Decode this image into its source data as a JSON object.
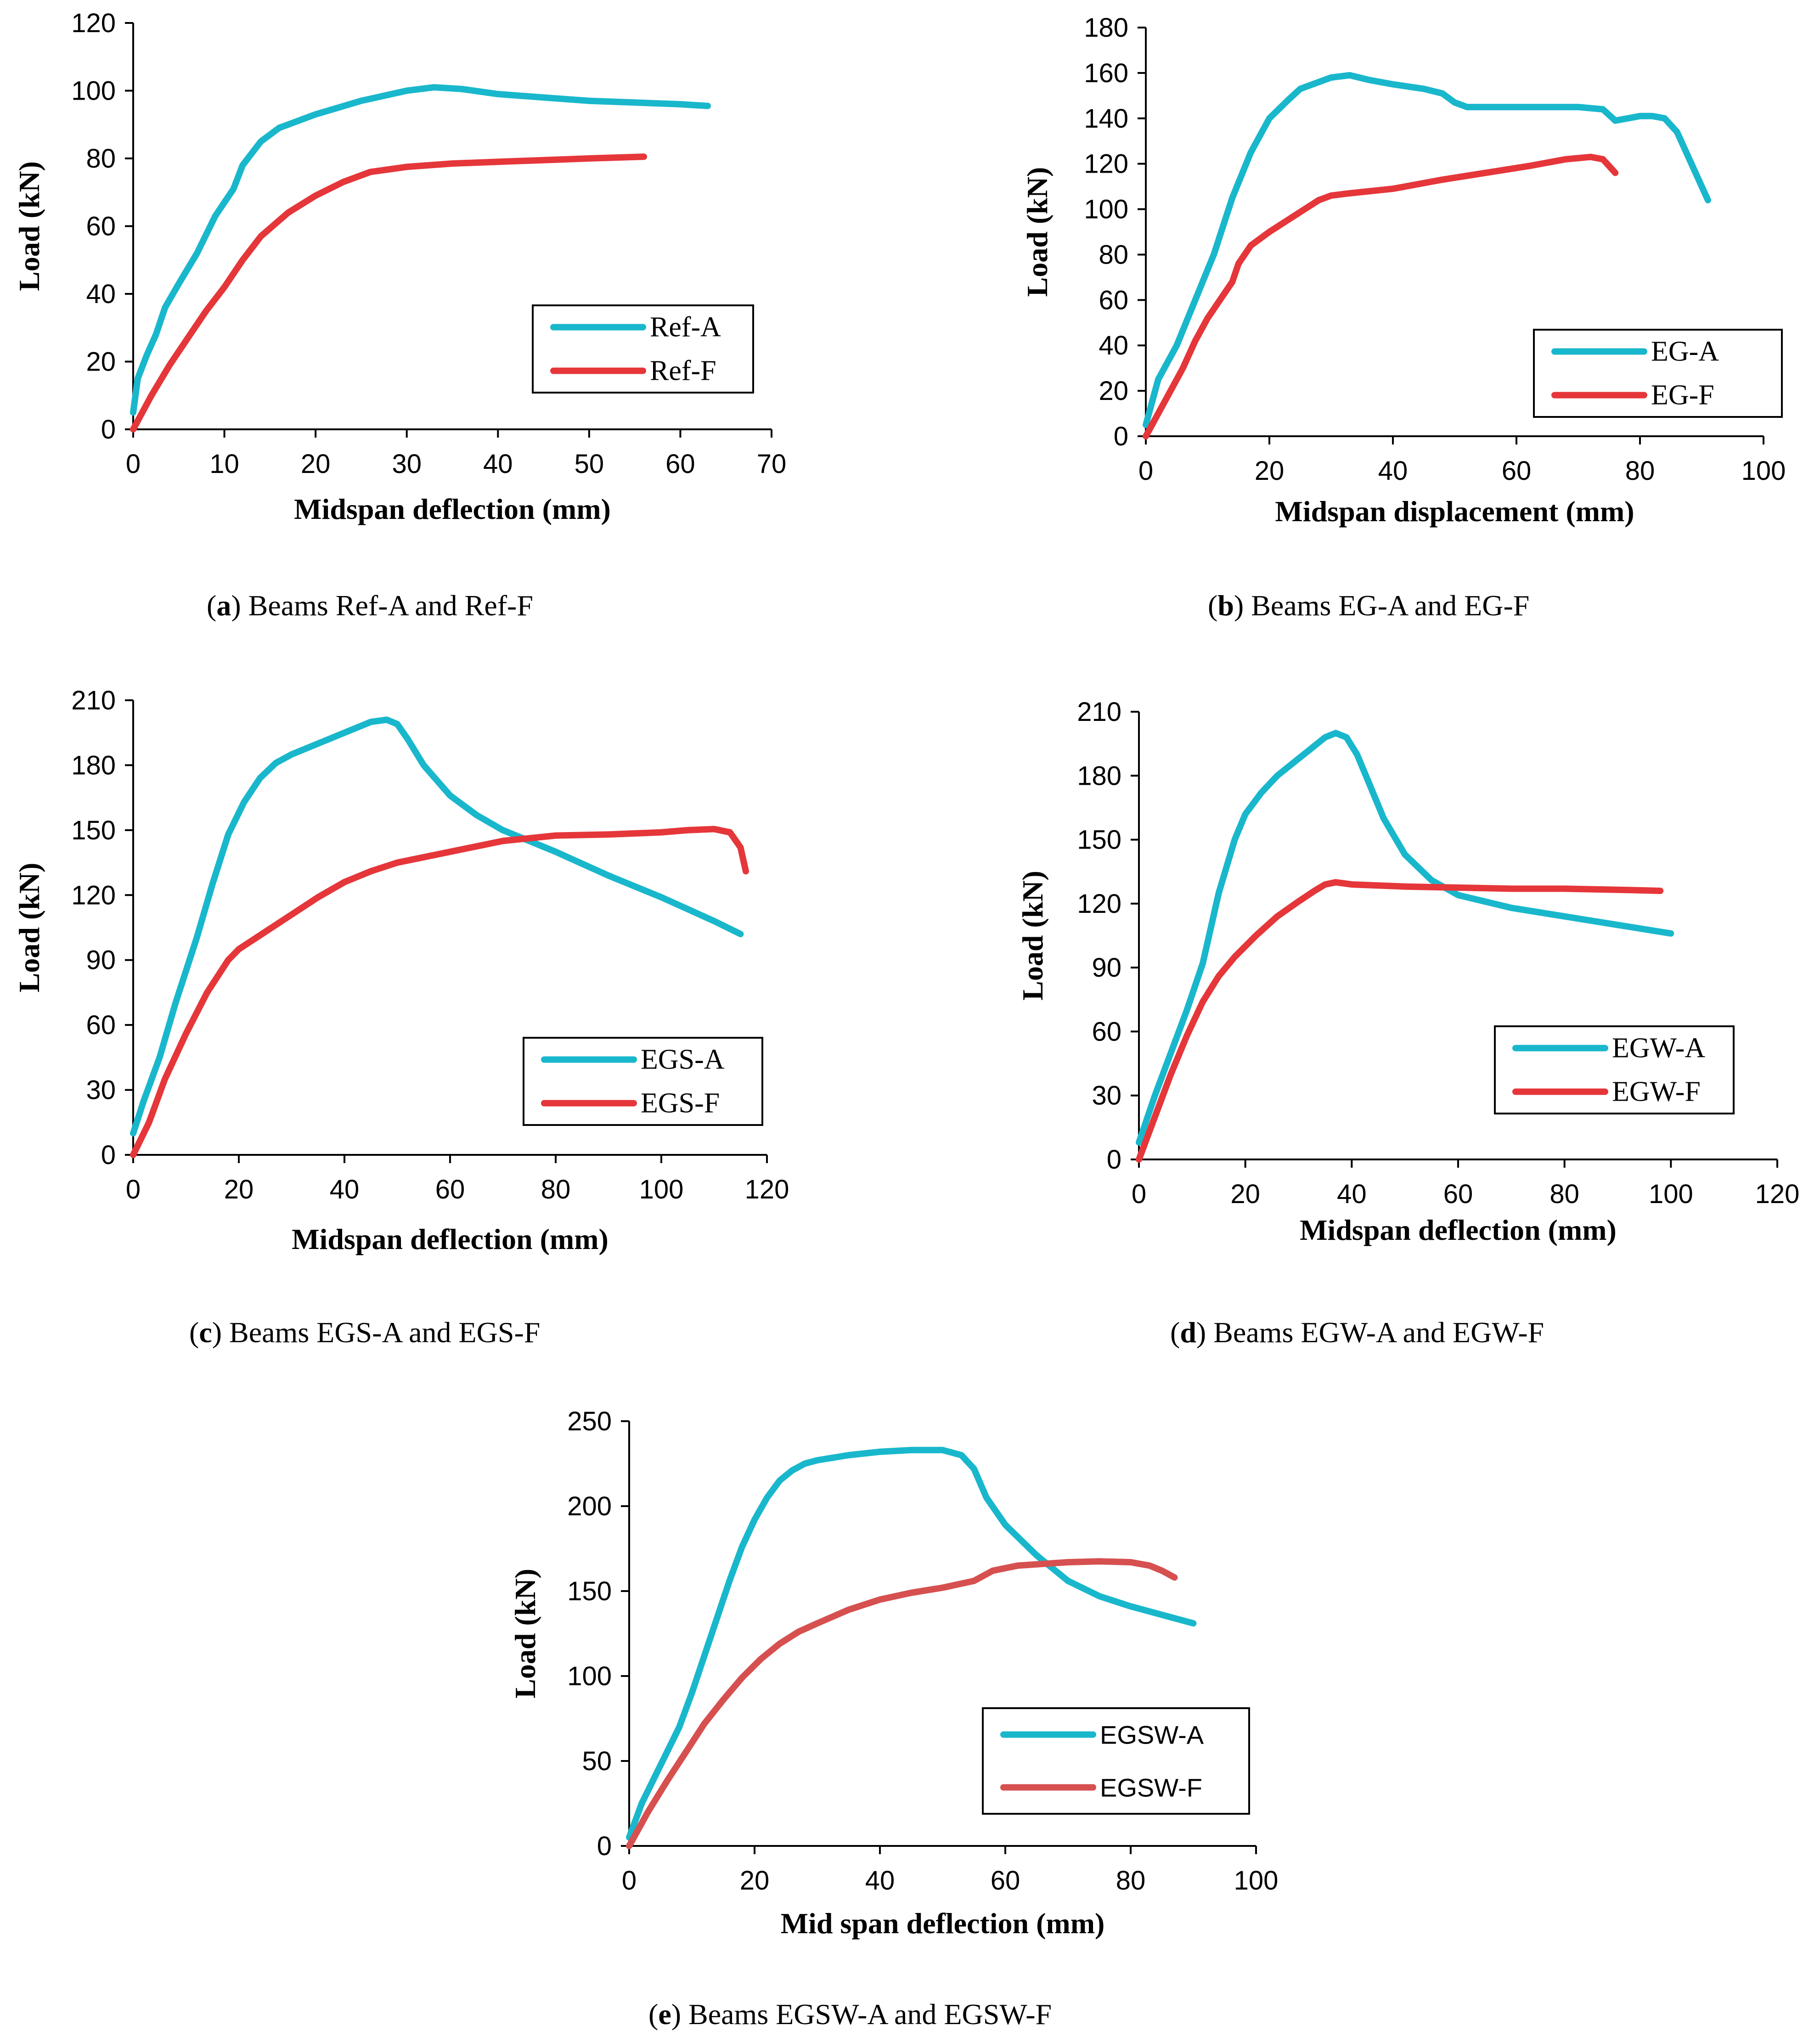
{
  "colors": {
    "cyan": "#19b7cc",
    "red": "#e5363a",
    "red_soft": "#d65050",
    "axis": "#000000"
  },
  "chart_data": [
    {
      "type": "line",
      "panel": "a",
      "caption": {
        "letter": "a",
        "text": "Beams Ref-A and Ref-F"
      },
      "xlabel": "Midspan deflection (mm)",
      "ylabel": "Load (kN)",
      "xlim": [
        0,
        70
      ],
      "ylim": [
        0,
        120
      ],
      "xticks": [
        0,
        10,
        20,
        30,
        40,
        50,
        60,
        70
      ],
      "yticks": [
        0,
        20,
        40,
        60,
        80,
        100,
        120
      ],
      "legend_position": "center-right",
      "series": [
        {
          "name": "Ref-A",
          "color": "cyan",
          "x": [
            0,
            0.5,
            1.5,
            2.5,
            3.5,
            5,
            7,
            9,
            11,
            12,
            14,
            16,
            20,
            25,
            30,
            33,
            36,
            40,
            45,
            50,
            55,
            60,
            63
          ],
          "y": [
            5,
            15,
            22,
            28,
            36,
            43,
            52,
            63,
            71,
            78,
            85,
            89,
            93,
            97,
            100,
            101,
            100.5,
            99,
            98,
            97,
            96.5,
            96,
            95.5
          ]
        },
        {
          "name": "Ref-F",
          "color": "red",
          "x": [
            0,
            2,
            4,
            6,
            8,
            10,
            12,
            14,
            17,
            20,
            23,
            26,
            30,
            35,
            40,
            45,
            50,
            56
          ],
          "y": [
            0,
            10,
            19,
            27,
            35,
            42,
            50,
            57,
            64,
            69,
            73,
            76,
            77.5,
            78.5,
            79,
            79.5,
            80,
            80.5
          ]
        }
      ]
    },
    {
      "type": "line",
      "panel": "b",
      "caption": {
        "letter": "b",
        "text": "Beams EG-A and EG-F"
      },
      "xlabel": "Midspan displacement (mm)",
      "ylabel": "Load (kN)",
      "xlim": [
        0,
        100
      ],
      "ylim": [
        0,
        180
      ],
      "xticks": [
        0,
        20,
        40,
        60,
        80,
        100
      ],
      "yticks": [
        0,
        20,
        40,
        60,
        80,
        100,
        120,
        140,
        160,
        180
      ],
      "legend_position": "bottom-right",
      "series": [
        {
          "name": "EG-A",
          "color": "cyan",
          "x": [
            0,
            2,
            5,
            8,
            11,
            14,
            17,
            20,
            23,
            25,
            27,
            30,
            33,
            36,
            40,
            45,
            48,
            50,
            52,
            55,
            60,
            65,
            70,
            74,
            76,
            78,
            80,
            82,
            84,
            86,
            88,
            90,
            91
          ],
          "y": [
            5,
            25,
            40,
            60,
            80,
            105,
            125,
            140,
            148,
            153,
            155,
            158,
            159,
            157,
            155,
            153,
            151,
            147,
            145,
            145,
            145,
            145,
            145,
            144,
            139,
            140,
            141,
            141,
            140,
            134,
            122,
            110,
            104
          ]
        },
        {
          "name": "EG-F",
          "color": "red",
          "x": [
            0,
            3,
            6,
            8,
            10,
            12,
            14,
            15,
            17,
            20,
            24,
            28,
            30,
            33,
            40,
            48,
            55,
            62,
            68,
            72,
            74,
            75,
            76
          ],
          "y": [
            0,
            15,
            30,
            42,
            52,
            60,
            68,
            76,
            84,
            90,
            97,
            104,
            106,
            107,
            109,
            113,
            116,
            119,
            122,
            123,
            122,
            119,
            116
          ]
        }
      ]
    },
    {
      "type": "line",
      "panel": "c",
      "caption": {
        "letter": "c",
        "text": "Beams EGS-A and EGS-F"
      },
      "xlabel": "Midspan deflection (mm)",
      "ylabel": "Load (kN)",
      "xlim": [
        0,
        120
      ],
      "ylim": [
        0,
        210
      ],
      "xticks": [
        0,
        20,
        40,
        60,
        80,
        100,
        120
      ],
      "yticks": [
        0,
        30,
        60,
        90,
        120,
        150,
        180,
        210
      ],
      "legend_position": "bottom-right",
      "series": [
        {
          "name": "EGS-A",
          "color": "cyan",
          "x": [
            0,
            2,
            5,
            8,
            12,
            15,
            18,
            21,
            24,
            27,
            30,
            35,
            40,
            45,
            48,
            50,
            52,
            55,
            60,
            65,
            70,
            75,
            80,
            90,
            100,
            110,
            115
          ],
          "y": [
            10,
            25,
            45,
            70,
            100,
            125,
            148,
            163,
            174,
            181,
            185,
            190,
            195,
            200,
            201,
            199,
            192,
            180,
            166,
            157,
            150,
            145,
            140,
            129,
            119,
            108,
            102
          ]
        },
        {
          "name": "EGS-F",
          "color": "red",
          "x": [
            0,
            3,
            6,
            10,
            14,
            18,
            20,
            25,
            30,
            35,
            40,
            45,
            50,
            60,
            70,
            80,
            90,
            100,
            105,
            110,
            113,
            115,
            116
          ],
          "y": [
            0,
            15,
            35,
            56,
            75,
            90,
            95,
            103,
            111,
            119,
            126,
            131,
            135,
            140,
            145,
            147.5,
            148,
            149,
            150,
            150.5,
            149,
            142,
            131
          ]
        }
      ]
    },
    {
      "type": "line",
      "panel": "d",
      "caption": {
        "letter": "d",
        "text": "Beams EGW-A and EGW-F"
      },
      "xlabel": "Midspan deflection (mm)",
      "ylabel": "Load (kN)",
      "xlim": [
        0,
        120
      ],
      "ylim": [
        0,
        210
      ],
      "xticks": [
        0,
        20,
        40,
        60,
        80,
        100,
        120
      ],
      "yticks": [
        0,
        30,
        60,
        90,
        120,
        150,
        180,
        210
      ],
      "legend_position": "bottom-right",
      "series": [
        {
          "name": "EGW-A",
          "color": "cyan",
          "x": [
            0,
            3,
            6,
            9,
            12,
            15,
            18,
            20,
            23,
            26,
            29,
            32,
            35,
            37,
            39,
            41,
            43,
            46,
            50,
            55,
            60,
            70,
            80,
            90,
            100
          ],
          "y": [
            8,
            30,
            50,
            70,
            92,
            125,
            150,
            162,
            172,
            180,
            186,
            192,
            198,
            200,
            198,
            190,
            178,
            160,
            143,
            131,
            124,
            118,
            114,
            110,
            106
          ]
        },
        {
          "name": "EGW-F",
          "color": "red",
          "x": [
            0,
            3,
            6,
            9,
            12,
            15,
            18,
            22,
            26,
            30,
            33,
            35,
            37,
            40,
            50,
            60,
            70,
            80,
            90,
            98
          ],
          "y": [
            0,
            20,
            40,
            58,
            74,
            86,
            95,
            105,
            114,
            121,
            126,
            129,
            130,
            129,
            128,
            127.5,
            127,
            127,
            126.5,
            126
          ]
        }
      ]
    },
    {
      "type": "line",
      "panel": "e",
      "caption": {
        "letter": "e",
        "text": "Beams EGSW-A and EGSW-F"
      },
      "xlabel": "Mid span deflection (mm)",
      "ylabel": "Load (kN)",
      "xlim": [
        0,
        100
      ],
      "ylim": [
        0,
        250
      ],
      "xticks": [
        0,
        20,
        40,
        60,
        80,
        100
      ],
      "yticks": [
        0,
        50,
        100,
        150,
        200,
        250
      ],
      "legend_position": "center-right",
      "series": [
        {
          "name": "EGSW-A",
          "color": "cyan",
          "x": [
            0,
            2,
            4,
            6,
            8,
            10,
            12,
            14,
            16,
            18,
            20,
            22,
            24,
            26,
            28,
            30,
            35,
            40,
            45,
            50,
            53,
            55,
            57,
            60,
            65,
            70,
            75,
            80,
            85,
            90
          ],
          "y": [
            5,
            25,
            40,
            55,
            70,
            90,
            112,
            134,
            156,
            176,
            192,
            205,
            215,
            221,
            225,
            227,
            230,
            232,
            233,
            233,
            230,
            222,
            205,
            189,
            171,
            156,
            147,
            141,
            136,
            131
          ]
        },
        {
          "name": "EGSW-F",
          "color": "red_soft",
          "x": [
            0,
            3,
            6,
            9,
            12,
            15,
            18,
            21,
            24,
            27,
            30,
            35,
            40,
            45,
            50,
            55,
            58,
            62,
            66,
            70,
            75,
            80,
            83,
            85,
            87
          ],
          "y": [
            0,
            20,
            38,
            55,
            72,
            86,
            99,
            110,
            119,
            126,
            131,
            139,
            145,
            149,
            152,
            156,
            162,
            165,
            166,
            167,
            167.5,
            167,
            165,
            162,
            158
          ]
        }
      ]
    }
  ]
}
